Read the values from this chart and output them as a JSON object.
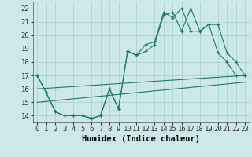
{
  "xlabel": "Humidex (Indice chaleur)",
  "background_color": "#cce8e8",
  "grid_color": "#aacccc",
  "line_color": "#1a7a6e",
  "xlim": [
    -0.5,
    23.5
  ],
  "ylim": [
    13.5,
    22.5
  ],
  "yticks": [
    14,
    15,
    16,
    17,
    18,
    19,
    20,
    21,
    22
  ],
  "xticks": [
    0,
    1,
    2,
    3,
    4,
    5,
    6,
    7,
    8,
    9,
    10,
    11,
    12,
    13,
    14,
    15,
    16,
    17,
    18,
    19,
    20,
    21,
    22,
    23
  ],
  "line1_x": [
    0,
    1,
    2,
    3,
    4,
    5,
    6,
    7,
    8,
    9,
    10,
    11,
    12,
    13,
    14,
    15,
    16,
    17,
    18,
    19,
    20,
    21,
    22,
    23
  ],
  "line1_y": [
    17.0,
    15.7,
    14.3,
    14.0,
    14.0,
    14.0,
    13.8,
    14.0,
    16.0,
    14.5,
    18.8,
    18.5,
    18.8,
    19.3,
    21.5,
    21.7,
    20.3,
    22.0,
    20.3,
    20.8,
    18.7,
    18.0,
    17.0,
    17.0
  ],
  "line2_x": [
    0,
    1,
    2,
    3,
    4,
    5,
    6,
    7,
    8,
    9,
    10,
    11,
    12,
    13,
    14,
    15,
    16,
    17,
    18,
    19,
    20,
    21,
    22,
    23
  ],
  "line2_y": [
    17.0,
    15.7,
    14.3,
    14.0,
    14.0,
    14.0,
    13.8,
    14.0,
    16.0,
    14.5,
    18.8,
    18.5,
    19.3,
    19.5,
    21.7,
    21.3,
    22.0,
    20.3,
    20.3,
    20.8,
    20.8,
    18.7,
    18.0,
    17.0
  ],
  "line3_x": [
    0,
    23
  ],
  "line3_y": [
    16.0,
    17.0
  ],
  "line4_x": [
    0,
    23
  ],
  "line4_y": [
    15.0,
    16.5
  ],
  "tick_fontsize": 6.5,
  "label_fontsize": 7.5
}
